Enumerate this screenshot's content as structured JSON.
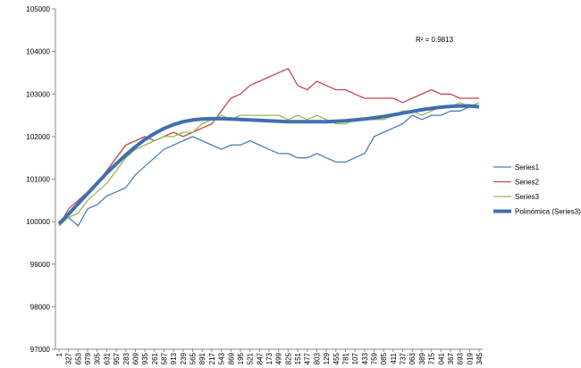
{
  "chart_data": {
    "type": "line",
    "annotation": "R² = 0.9813",
    "categories": [
      "1",
      "327",
      "653",
      "979",
      "305",
      "631",
      "957",
      "283",
      "609",
      "935",
      "261",
      "587",
      "913",
      "239",
      "565",
      "891",
      "217",
      "543",
      "869",
      "195",
      "521",
      "847",
      "173",
      "499",
      "825",
      "151",
      "477",
      "803",
      "129",
      "455",
      "781",
      "107",
      "433",
      "759",
      "085",
      "411",
      "737",
      "063",
      "389",
      "715",
      "041",
      "367",
      "693",
      "019",
      "345"
    ],
    "series": [
      {
        "name": "Series1",
        "color": "#4a7ebb",
        "width": 1.3,
        "values": [
          100000,
          100100,
          99900,
          100300,
          100400,
          100600,
          100700,
          100800,
          101100,
          101300,
          101500,
          101700,
          101800,
          101900,
          102000,
          101900,
          101800,
          101700,
          101800,
          101800,
          101900,
          101800,
          101700,
          101600,
          101600,
          101500,
          101500,
          101600,
          101500,
          101400,
          101400,
          101500,
          101600,
          102000,
          102100,
          102200,
          102300,
          102500,
          102400,
          102500,
          102500,
          102600,
          102600,
          102700,
          102700
        ]
      },
      {
        "name": "Series2",
        "color": "#be4b48",
        "width": 1.3,
        "values": [
          99900,
          100300,
          100500,
          100700,
          100900,
          101200,
          101500,
          101800,
          101900,
          102000,
          101900,
          102000,
          102100,
          102000,
          102100,
          102200,
          102300,
          102600,
          102900,
          103000,
          103200,
          103300,
          103400,
          103500,
          103600,
          103200,
          103100,
          103300,
          103200,
          103100,
          103100,
          103000,
          102900,
          102900,
          102900,
          102900,
          102800,
          102900,
          103000,
          103100,
          103000,
          103000,
          102900,
          102900,
          102900
        ]
      },
      {
        "name": "Series3",
        "color": "#98b954",
        "width": 1.3,
        "values": [
          99900,
          100100,
          100200,
          100500,
          100700,
          100900,
          101200,
          101500,
          101700,
          101800,
          101900,
          102000,
          102000,
          102100,
          102100,
          102300,
          102400,
          102500,
          102400,
          102500,
          102500,
          102500,
          102500,
          102500,
          102400,
          102500,
          102400,
          102500,
          102400,
          102300,
          102300,
          102400,
          102400,
          102400,
          102400,
          102500,
          102600,
          102600,
          102500,
          102600,
          102700,
          102700,
          102800,
          102700,
          102800
        ]
      },
      {
        "name": "Polinómica (Series3)",
        "color": "#3f6fb0",
        "width": 4,
        "values": [
          99950,
          100180,
          100420,
          100660,
          100900,
          101140,
          101360,
          101570,
          101760,
          101930,
          102070,
          102190,
          102280,
          102350,
          102390,
          102410,
          102420,
          102420,
          102410,
          102400,
          102390,
          102380,
          102370,
          102360,
          102350,
          102350,
          102350,
          102350,
          102350,
          102360,
          102370,
          102390,
          102410,
          102440,
          102470,
          102510,
          102550,
          102590,
          102630,
          102660,
          102690,
          102710,
          102720,
          102720,
          102700
        ]
      }
    ],
    "ylim": [
      97000,
      105000
    ],
    "yticks": [
      97000,
      98000,
      99000,
      100000,
      101000,
      102000,
      103000,
      104000,
      105000
    ]
  }
}
